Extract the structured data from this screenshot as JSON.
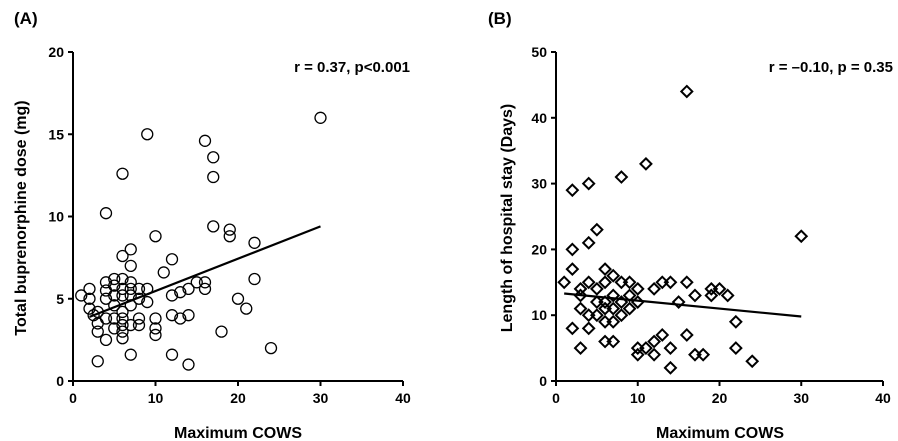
{
  "chart_data": [
    {
      "panel": "(A)",
      "type": "scatter",
      "marker": "circle",
      "annotation": "r = 0.37, p<0.001",
      "xlabel": "Maximum COWS",
      "ylabel": "Total buprenorphine dose (mg)",
      "xlim": [
        0,
        40
      ],
      "ylim": [
        0,
        20
      ],
      "xticks": [
        "0",
        "10",
        "20",
        "30",
        "40"
      ],
      "yticks": [
        "0",
        "5",
        "10",
        "15",
        "20"
      ],
      "grid": false,
      "regression_line": {
        "x": [
          2,
          30
        ],
        "y": [
          3.9,
          9.4
        ]
      },
      "points": [
        [
          1,
          5.2
        ],
        [
          2,
          4.4
        ],
        [
          2,
          5.0
        ],
        [
          2,
          5.6
        ],
        [
          2.5,
          4.0
        ],
        [
          3,
          1.2
        ],
        [
          3,
          3.0
        ],
        [
          3,
          3.5
        ],
        [
          3,
          4.2
        ],
        [
          4,
          2.5
        ],
        [
          4,
          3.8
        ],
        [
          4,
          5.0
        ],
        [
          4,
          5.5
        ],
        [
          4,
          6.0
        ],
        [
          4,
          10.2
        ],
        [
          5,
          3.2
        ],
        [
          5,
          3.8
        ],
        [
          5,
          4.6
        ],
        [
          5,
          5.2
        ],
        [
          5,
          5.8
        ],
        [
          5,
          6.2
        ],
        [
          6,
          2.6
        ],
        [
          6,
          3.0
        ],
        [
          6,
          3.4
        ],
        [
          6,
          3.8
        ],
        [
          6,
          4.2
        ],
        [
          6,
          5.2
        ],
        [
          6,
          5.6
        ],
        [
          6,
          6.2
        ],
        [
          6,
          7.6
        ],
        [
          6,
          12.6
        ],
        [
          7,
          1.6
        ],
        [
          7,
          3.4
        ],
        [
          7,
          4.6
        ],
        [
          7,
          5.2
        ],
        [
          7,
          5.6
        ],
        [
          7,
          6.0
        ],
        [
          7,
          7.0
        ],
        [
          7,
          8.0
        ],
        [
          8,
          3.4
        ],
        [
          8,
          3.8
        ],
        [
          8,
          5.0
        ],
        [
          8,
          5.6
        ],
        [
          9,
          4.8
        ],
        [
          9,
          5.6
        ],
        [
          9,
          15.0
        ],
        [
          10,
          2.8
        ],
        [
          10,
          3.2
        ],
        [
          10,
          3.8
        ],
        [
          10,
          8.8
        ],
        [
          11,
          6.6
        ],
        [
          12,
          1.6
        ],
        [
          12,
          4.0
        ],
        [
          12,
          5.2
        ],
        [
          12,
          7.4
        ],
        [
          13,
          3.8
        ],
        [
          13,
          5.4
        ],
        [
          14,
          1.0
        ],
        [
          14,
          4.0
        ],
        [
          14,
          5.6
        ],
        [
          15,
          6.0
        ],
        [
          16,
          5.6
        ],
        [
          16,
          6.0
        ],
        [
          16,
          14.6
        ],
        [
          17,
          9.4
        ],
        [
          17,
          12.4
        ],
        [
          17,
          13.6
        ],
        [
          18,
          3.0
        ],
        [
          19,
          8.8
        ],
        [
          19,
          9.2
        ],
        [
          20,
          5.0
        ],
        [
          21,
          4.4
        ],
        [
          22,
          6.2
        ],
        [
          22,
          8.4
        ],
        [
          24,
          2.0
        ],
        [
          30,
          16.0
        ]
      ]
    },
    {
      "panel": "(B)",
      "type": "scatter",
      "marker": "diamond",
      "annotation": "r = –0.10, p = 0.35",
      "xlabel": "Maximum COWS",
      "ylabel": "Length of hospital stay (Days)",
      "xlim": [
        0,
        40
      ],
      "ylim": [
        0,
        50
      ],
      "xticks": [
        "0",
        "10",
        "20",
        "30",
        "40"
      ],
      "yticks": [
        "0",
        "10",
        "20",
        "30",
        "40",
        "50"
      ],
      "grid": false,
      "regression_line": {
        "x": [
          1,
          30
        ],
        "y": [
          13.3,
          9.8
        ]
      },
      "points": [
        [
          1,
          15
        ],
        [
          2,
          8
        ],
        [
          2,
          17
        ],
        [
          2,
          20
        ],
        [
          2,
          29
        ],
        [
          3,
          5
        ],
        [
          3,
          11
        ],
        [
          3,
          13
        ],
        [
          3,
          14
        ],
        [
          4,
          8
        ],
        [
          4,
          10
        ],
        [
          4,
          15
        ],
        [
          4,
          21
        ],
        [
          4,
          30
        ],
        [
          5,
          10
        ],
        [
          5,
          12
        ],
        [
          5,
          14
        ],
        [
          5,
          23
        ],
        [
          6,
          6
        ],
        [
          6,
          9
        ],
        [
          6,
          11
        ],
        [
          6,
          12
        ],
        [
          6,
          15
        ],
        [
          6,
          17
        ],
        [
          7,
          6
        ],
        [
          7,
          9
        ],
        [
          7,
          11
        ],
        [
          7,
          13
        ],
        [
          7,
          16
        ],
        [
          8,
          10
        ],
        [
          8,
          12
        ],
        [
          8,
          15
        ],
        [
          8,
          31
        ],
        [
          9,
          11
        ],
        [
          9,
          13
        ],
        [
          9,
          15
        ],
        [
          10,
          4
        ],
        [
          10,
          5
        ],
        [
          10,
          12
        ],
        [
          10,
          14
        ],
        [
          11,
          5
        ],
        [
          11,
          33
        ],
        [
          12,
          4
        ],
        [
          12,
          6
        ],
        [
          12,
          14
        ],
        [
          13,
          7
        ],
        [
          13,
          15
        ],
        [
          14,
          2
        ],
        [
          14,
          5
        ],
        [
          14,
          15
        ],
        [
          15,
          12
        ],
        [
          16,
          7
        ],
        [
          16,
          15
        ],
        [
          16,
          44
        ],
        [
          17,
          4
        ],
        [
          17,
          13
        ],
        [
          18,
          4
        ],
        [
          19,
          13
        ],
        [
          19,
          14
        ],
        [
          20,
          14
        ],
        [
          21,
          13
        ],
        [
          22,
          5
        ],
        [
          22,
          9
        ],
        [
          24,
          3
        ],
        [
          30,
          22
        ]
      ]
    }
  ]
}
